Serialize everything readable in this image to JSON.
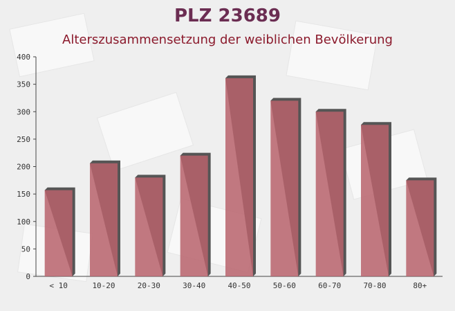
{
  "chart_data": {
    "type": "bar",
    "title": "PLZ 23689",
    "subtitle": "Alterszusammensetzung der weiblichen Bevölkerung",
    "categories": [
      "< 10",
      "10-20",
      "20-30",
      "30-40",
      "40-50",
      "50-60",
      "60-70",
      "70-80",
      "80+"
    ],
    "values": [
      157,
      206,
      180,
      220,
      361,
      320,
      300,
      276,
      175
    ],
    "color": "#b9636c",
    "ylim": [
      0,
      400
    ],
    "yticks": [
      0,
      50,
      100,
      150,
      200,
      250,
      300,
      350,
      400
    ]
  }
}
